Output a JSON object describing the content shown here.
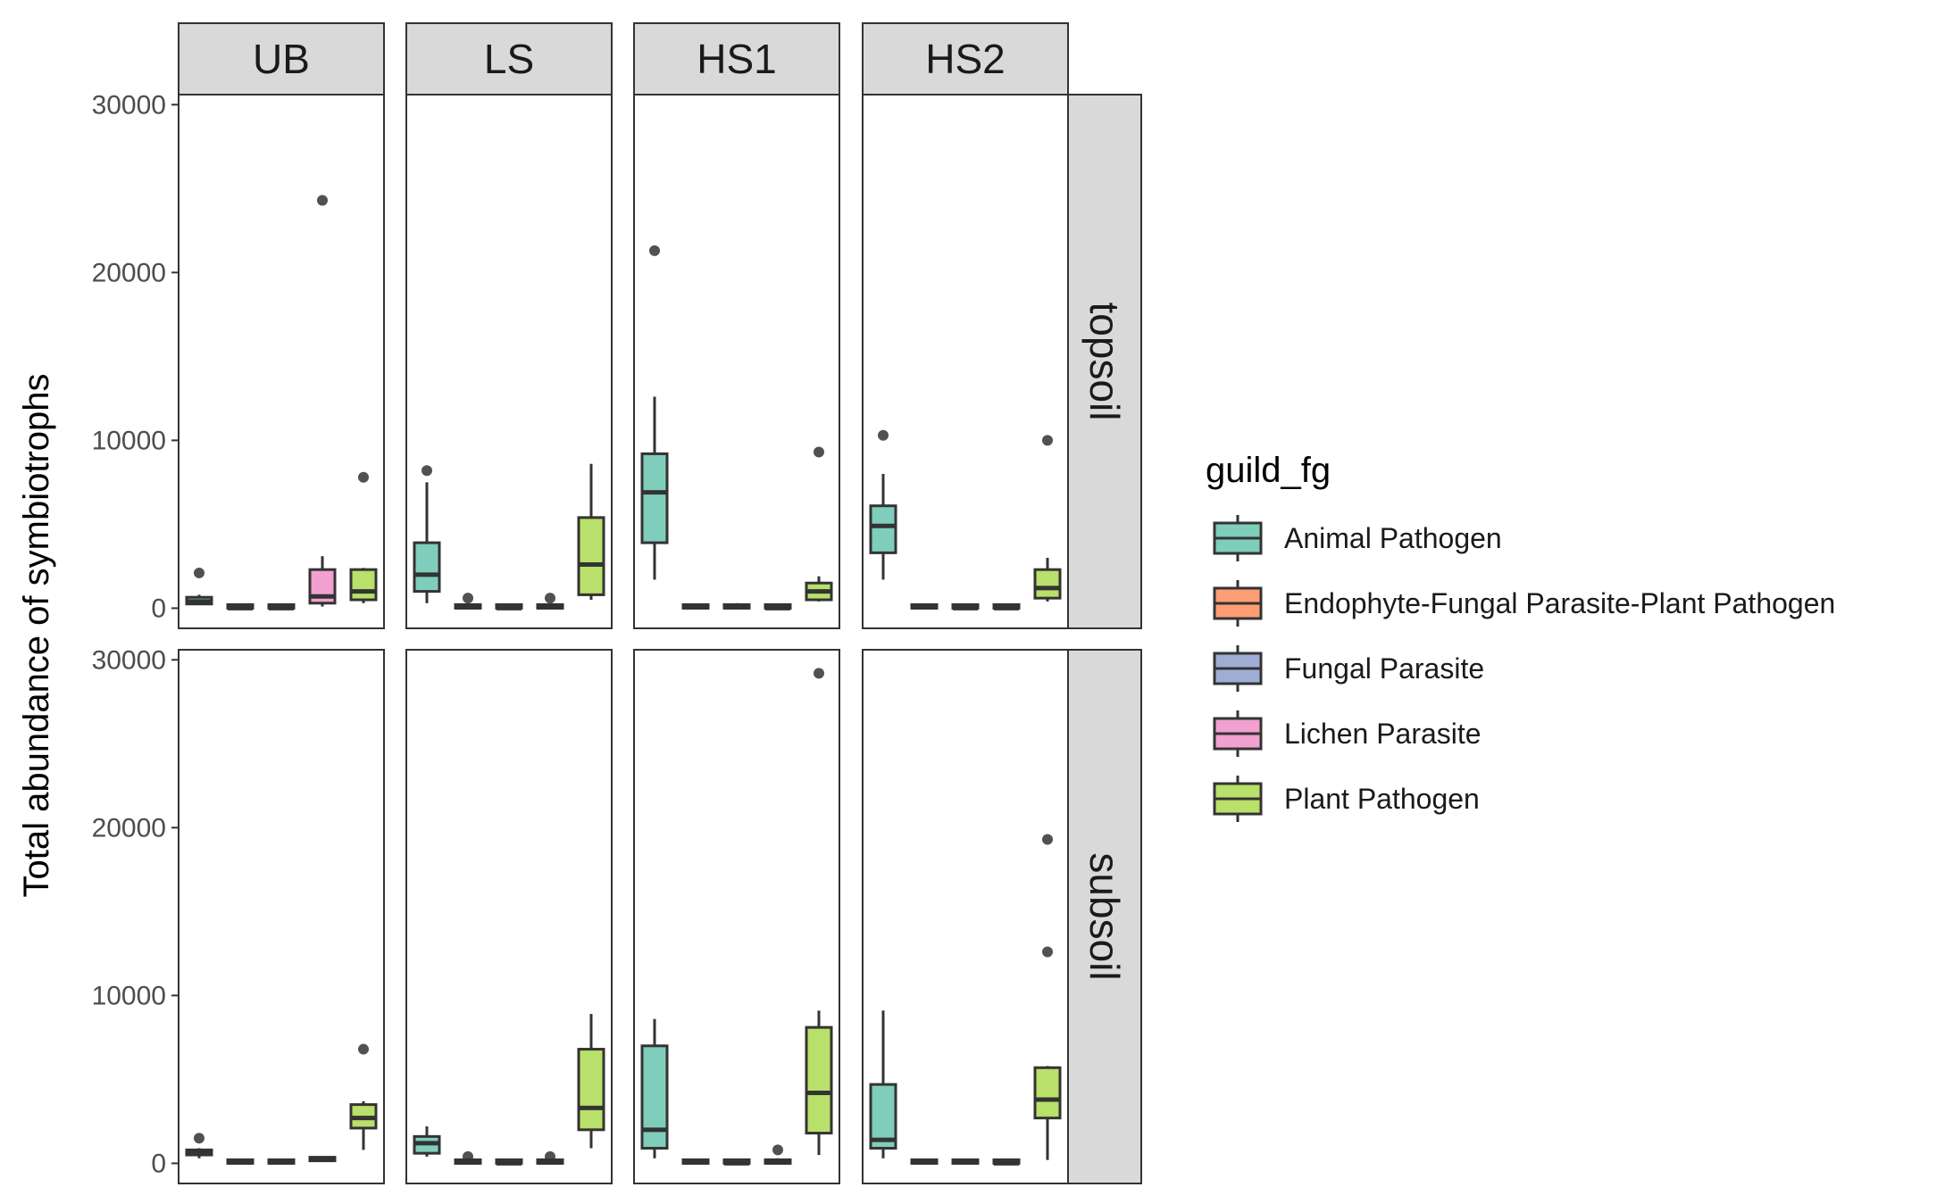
{
  "chart_data": {
    "type": "boxplot",
    "ylabel": "Total abundance of symbiotrophs",
    "ylim": [
      -1200,
      30600
    ],
    "y_ticks": [
      0,
      10000,
      20000,
      30000
    ],
    "grid": false,
    "col_facets": [
      "UB",
      "LS",
      "HS1",
      "HS2"
    ],
    "row_facets": [
      "topsoil",
      "subsoil"
    ],
    "legend": {
      "title": "guild_fg",
      "position": "right",
      "entries": [
        {
          "name": "Animal Pathogen",
          "color": "#7fcdbb"
        },
        {
          "name": "Endophyte-Fungal Parasite-Plant Pathogen",
          "color": "#fc9d74"
        },
        {
          "name": "Fungal Parasite",
          "color": "#9fadd4"
        },
        {
          "name": "Lichen Parasite",
          "color": "#f1a0cf"
        },
        {
          "name": "Plant Pathogen",
          "color": "#b8e06a"
        }
      ]
    },
    "panels": [
      {
        "row": "topsoil",
        "col": "UB",
        "boxes": [
          {
            "min": 200,
            "q1": 250,
            "median": 400,
            "q3": 650,
            "max": 800,
            "outliers": [
              2100
            ]
          },
          {
            "min": 0,
            "q1": 0,
            "median": 0,
            "q3": 30,
            "max": 50,
            "outliers": []
          },
          {
            "min": 0,
            "q1": 0,
            "median": 0,
            "q3": 30,
            "max": 50,
            "outliers": []
          },
          {
            "min": 100,
            "q1": 300,
            "median": 700,
            "q3": 2300,
            "max": 3100,
            "outliers": [
              24300
            ]
          },
          {
            "min": 300,
            "q1": 500,
            "median": 1000,
            "q3": 2300,
            "max": 2400,
            "outliers": [
              7800
            ]
          }
        ]
      },
      {
        "row": "topsoil",
        "col": "LS",
        "boxes": [
          {
            "min": 300,
            "q1": 1000,
            "median": 2000,
            "q3": 3900,
            "max": 7500,
            "outliers": [
              8200
            ]
          },
          {
            "min": 0,
            "q1": 0,
            "median": 50,
            "q3": 100,
            "max": 150,
            "outliers": [
              600
            ]
          },
          {
            "min": 0,
            "q1": 0,
            "median": 0,
            "q3": 50,
            "max": 100,
            "outliers": []
          },
          {
            "min": 0,
            "q1": 0,
            "median": 50,
            "q3": 100,
            "max": 150,
            "outliers": [
              600
            ]
          },
          {
            "min": 500,
            "q1": 800,
            "median": 2600,
            "q3": 5400,
            "max": 8600,
            "outliers": []
          }
        ]
      },
      {
        "row": "topsoil",
        "col": "HS1",
        "boxes": [
          {
            "min": 1700,
            "q1": 3900,
            "median": 6900,
            "q3": 9200,
            "max": 12600,
            "outliers": [
              21300
            ]
          },
          {
            "min": 0,
            "q1": 0,
            "median": 50,
            "q3": 100,
            "max": 200,
            "outliers": []
          },
          {
            "min": 0,
            "q1": 0,
            "median": 50,
            "q3": 100,
            "max": 300,
            "outliers": []
          },
          {
            "min": 0,
            "q1": 0,
            "median": 0,
            "q3": 50,
            "max": 100,
            "outliers": []
          },
          {
            "min": 400,
            "q1": 500,
            "median": 1000,
            "q3": 1500,
            "max": 1900,
            "outliers": [
              9300
            ]
          }
        ]
      },
      {
        "row": "topsoil",
        "col": "HS2",
        "boxes": [
          {
            "min": 1700,
            "q1": 3300,
            "median": 4900,
            "q3": 6100,
            "max": 8000,
            "outliers": [
              10300
            ]
          },
          {
            "min": 0,
            "q1": 0,
            "median": 50,
            "q3": 100,
            "max": 150,
            "outliers": []
          },
          {
            "min": 0,
            "q1": 0,
            "median": 0,
            "q3": 50,
            "max": 100,
            "outliers": []
          },
          {
            "min": 0,
            "q1": 0,
            "median": 0,
            "q3": 50,
            "max": 100,
            "outliers": []
          },
          {
            "min": 400,
            "q1": 600,
            "median": 1200,
            "q3": 2300,
            "max": 3000,
            "outliers": [
              10000
            ]
          }
        ]
      },
      {
        "row": "subsoil",
        "col": "UB",
        "boxes": [
          {
            "min": 300,
            "q1": 500,
            "median": 700,
            "q3": 800,
            "max": 900,
            "outliers": [
              1500
            ]
          },
          {
            "min": 0,
            "q1": 0,
            "median": 50,
            "q3": 100,
            "max": 150,
            "outliers": []
          },
          {
            "min": 0,
            "q1": 0,
            "median": 50,
            "q3": 100,
            "max": 150,
            "outliers": []
          },
          {
            "min": 100,
            "q1": 150,
            "median": 250,
            "q3": 350,
            "max": 400,
            "outliers": []
          },
          {
            "min": 800,
            "q1": 2100,
            "median": 2700,
            "q3": 3500,
            "max": 3700,
            "outliers": [
              6800
            ]
          }
        ]
      },
      {
        "row": "subsoil",
        "col": "LS",
        "boxes": [
          {
            "min": 400,
            "q1": 600,
            "median": 1200,
            "q3": 1600,
            "max": 2200,
            "outliers": []
          },
          {
            "min": 0,
            "q1": 0,
            "median": 50,
            "q3": 100,
            "max": 150,
            "outliers": [
              400
            ]
          },
          {
            "min": 0,
            "q1": 0,
            "median": 0,
            "q3": 50,
            "max": 100,
            "outliers": []
          },
          {
            "min": 0,
            "q1": 0,
            "median": 50,
            "q3": 100,
            "max": 150,
            "outliers": [
              400
            ]
          },
          {
            "min": 900,
            "q1": 2000,
            "median": 3300,
            "q3": 6800,
            "max": 8900,
            "outliers": []
          }
        ]
      },
      {
        "row": "subsoil",
        "col": "HS1",
        "boxes": [
          {
            "min": 300,
            "q1": 900,
            "median": 2000,
            "q3": 7000,
            "max": 8600,
            "outliers": []
          },
          {
            "min": 0,
            "q1": 0,
            "median": 50,
            "q3": 100,
            "max": 200,
            "outliers": []
          },
          {
            "min": 0,
            "q1": 0,
            "median": 0,
            "q3": 50,
            "max": 100,
            "outliers": []
          },
          {
            "min": 0,
            "q1": 0,
            "median": 50,
            "q3": 150,
            "max": 300,
            "outliers": [
              800
            ]
          },
          {
            "min": 500,
            "q1": 1800,
            "median": 4200,
            "q3": 8100,
            "max": 9100,
            "outliers": [
              29200
            ]
          }
        ]
      },
      {
        "row": "subsoil",
        "col": "HS2",
        "boxes": [
          {
            "min": 300,
            "q1": 900,
            "median": 1400,
            "q3": 4700,
            "max": 9100,
            "outliers": []
          },
          {
            "min": 0,
            "q1": 0,
            "median": 50,
            "q3": 100,
            "max": 200,
            "outliers": []
          },
          {
            "min": 0,
            "q1": 0,
            "median": 50,
            "q3": 100,
            "max": 150,
            "outliers": []
          },
          {
            "min": 0,
            "q1": 0,
            "median": 0,
            "q3": 50,
            "max": 100,
            "outliers": []
          },
          {
            "min": 200,
            "q1": 2700,
            "median": 3800,
            "q3": 5700,
            "max": 5800,
            "outliers": [
              19300,
              12600
            ]
          }
        ]
      }
    ]
  }
}
